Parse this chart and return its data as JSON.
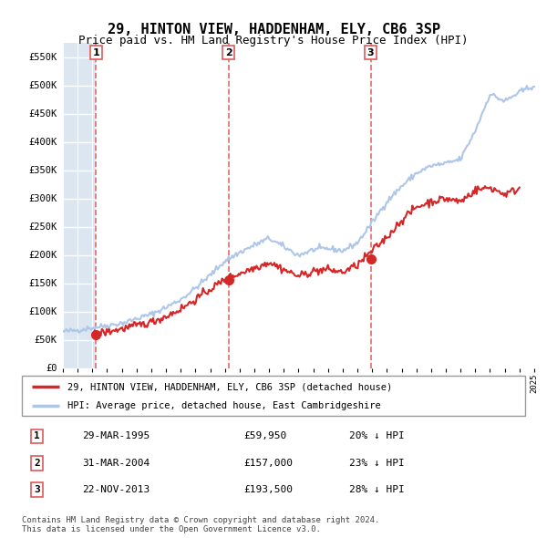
{
  "title": "29, HINTON VIEW, HADDENHAM, ELY, CB6 3SP",
  "subtitle": "Price paid vs. HM Land Registry's House Price Index (HPI)",
  "ylim": [
    0,
    575000
  ],
  "yticks": [
    0,
    50000,
    100000,
    150000,
    200000,
    250000,
    300000,
    350000,
    400000,
    450000,
    500000,
    550000
  ],
  "ytick_labels": [
    "£0",
    "£50K",
    "£100K",
    "£150K",
    "£200K",
    "£250K",
    "£300K",
    "£350K",
    "£400K",
    "£450K",
    "£500K",
    "£550K"
  ],
  "x_start_year": 1993,
  "x_end_year": 2025,
  "xtick_years": [
    1993,
    1994,
    1995,
    1996,
    1997,
    1998,
    1999,
    2000,
    2001,
    2002,
    2003,
    2004,
    2005,
    2006,
    2007,
    2008,
    2009,
    2010,
    2011,
    2012,
    2013,
    2014,
    2015,
    2016,
    2017,
    2018,
    2019,
    2020,
    2021,
    2022,
    2023,
    2024,
    2025
  ],
  "hpi_color": "#aec6e8",
  "price_color": "#d62728",
  "vline_color": "#e05a5a",
  "sale1_year": 1995.24,
  "sale1_price": 59950,
  "sale2_year": 2004.25,
  "sale2_price": 157000,
  "sale3_year": 2013.9,
  "sale3_price": 193500,
  "legend_label_price": "29, HINTON VIEW, HADDENHAM, ELY, CB6 3SP (detached house)",
  "legend_label_hpi": "HPI: Average price, detached house, East Cambridgeshire",
  "table_data": [
    {
      "num": "1",
      "date": "29-MAR-1995",
      "price": "£59,950",
      "note": "20% ↓ HPI"
    },
    {
      "num": "2",
      "date": "31-MAR-2004",
      "price": "£157,000",
      "note": "23% ↓ HPI"
    },
    {
      "num": "3",
      "date": "22-NOV-2013",
      "price": "£193,500",
      "note": "28% ↓ HPI"
    }
  ],
  "footnote": "Contains HM Land Registry data © Crown copyright and database right 2024.\nThis data is licensed under the Open Government Licence v3.0.",
  "bg_left_color": "#dce6f1",
  "bg_right_color": "#ffffff",
  "grid_color": "#ffffff",
  "hatch_pattern": "////",
  "hpi_anchor_years": [
    1993,
    1994,
    1995,
    1996,
    1997,
    1998,
    1999,
    2000,
    2001,
    2002,
    2003,
    2004,
    2005,
    2006,
    2007,
    2008,
    2009,
    2010,
    2011,
    2012,
    2013,
    2014,
    2015,
    2016,
    2017,
    2018,
    2019,
    2020,
    2021,
    2022,
    2023,
    2024,
    2025
  ],
  "hpi_anchor_prices": [
    65000,
    68000,
    72000,
    76000,
    80000,
    88000,
    96000,
    108000,
    122000,
    142000,
    165000,
    190000,
    205000,
    218000,
    230000,
    215000,
    200000,
    210000,
    212000,
    208000,
    222000,
    258000,
    295000,
    322000,
    345000,
    358000,
    362000,
    370000,
    420000,
    485000,
    472000,
    488000,
    500000
  ],
  "pp_anchor_years": [
    1995,
    1996,
    1997,
    1998,
    1999,
    2000,
    2001,
    2002,
    2003,
    2004,
    2005,
    2006,
    2007,
    2008,
    2009,
    2010,
    2011,
    2012,
    2013,
    2014,
    2015,
    2016,
    2017,
    2018,
    2019,
    2020,
    2021,
    2022,
    2023,
    2024
  ],
  "pp_anchor_prices": [
    60000,
    65000,
    70000,
    76000,
    82000,
    92000,
    105000,
    122000,
    140000,
    157000,
    168000,
    178000,
    188000,
    175000,
    163000,
    172000,
    175000,
    170000,
    183000,
    208000,
    232000,
    262000,
    285000,
    295000,
    300000,
    295000,
    315000,
    320000,
    308000,
    318000
  ]
}
